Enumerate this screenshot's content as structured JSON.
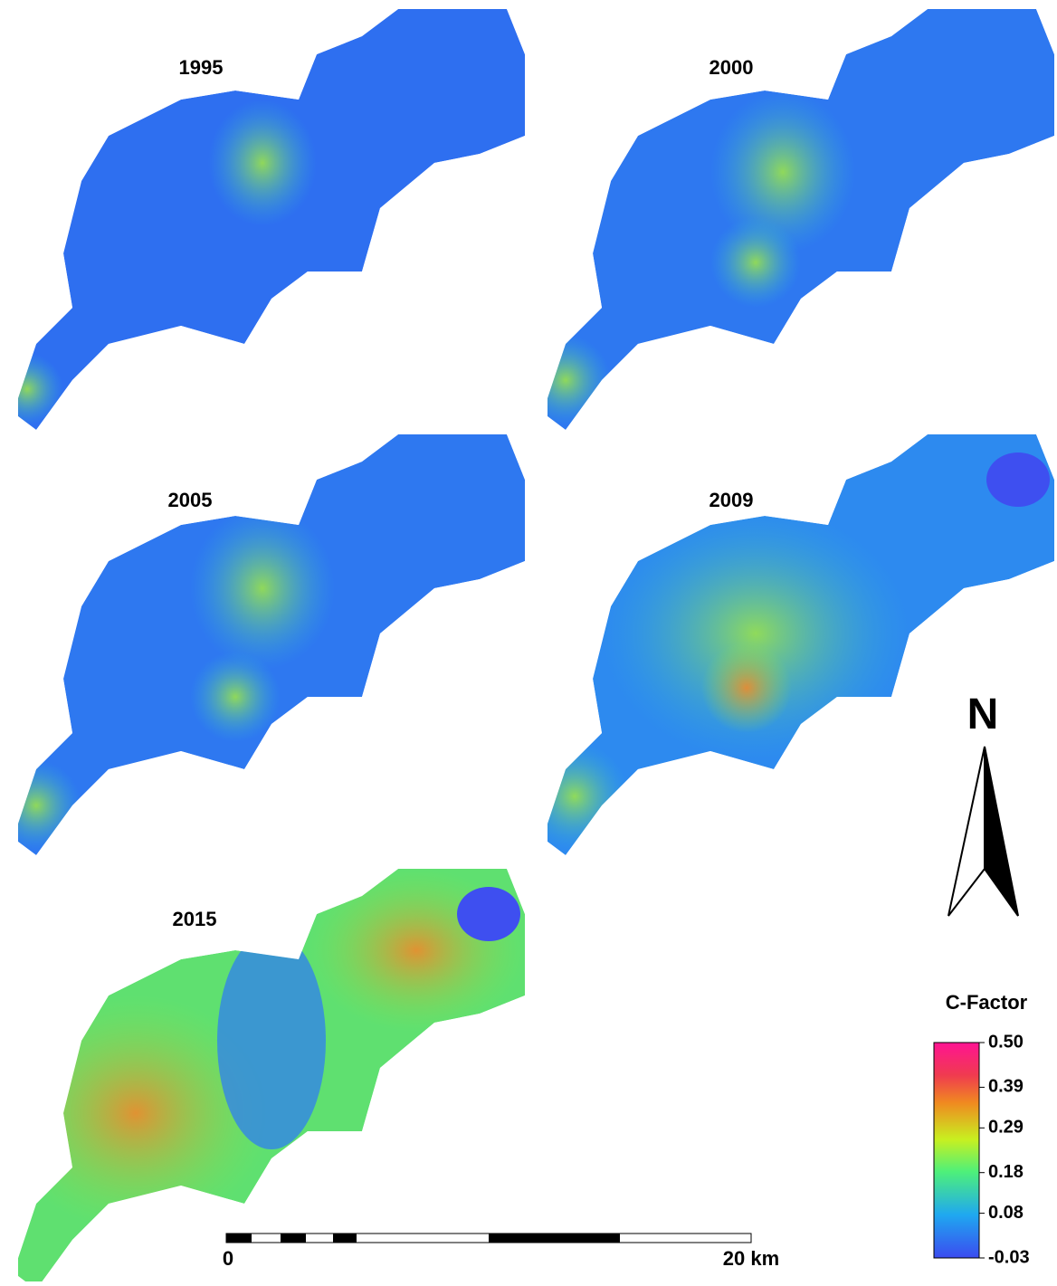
{
  "panels": [
    {
      "title": "1995"
    },
    {
      "title": "2000"
    },
    {
      "title": "2005"
    },
    {
      "title": "2009"
    },
    {
      "title": "2015"
    }
  ],
  "north_arrow": {
    "label": "N"
  },
  "legend": {
    "title": "C-Factor",
    "range": [
      -0.03,
      0.5
    ],
    "ticks": [
      {
        "value": 0.5,
        "label": "0.50"
      },
      {
        "value": 0.39,
        "label": "0.39"
      },
      {
        "value": 0.29,
        "label": "0.29"
      },
      {
        "value": 0.18,
        "label": "0.18"
      },
      {
        "value": 0.08,
        "label": "0.08"
      },
      {
        "value": -0.03,
        "label": "-0.03"
      }
    ]
  },
  "scale_bar": {
    "start_label": "0",
    "end_label": "20 km"
  }
}
